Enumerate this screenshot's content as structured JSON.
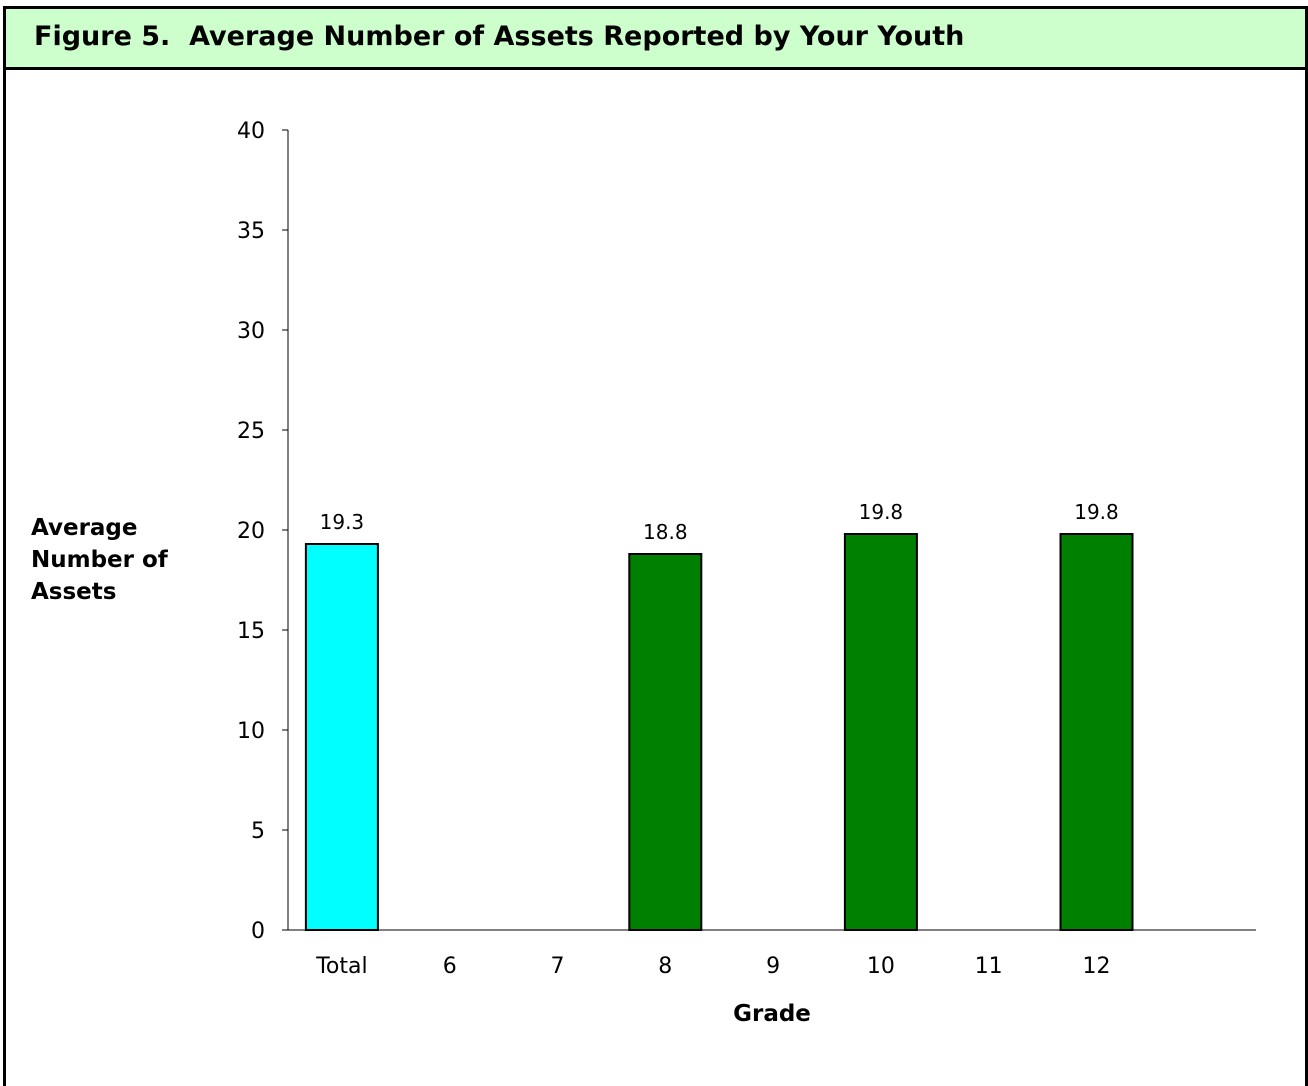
{
  "figure": {
    "title": "Figure 5.  Average Number of Assets Reported by Your Youth",
    "ylabel_lines": [
      "Average",
      "Number of",
      "Assets"
    ]
  },
  "colors": {
    "title_background": "#ccffcc",
    "total_bar": "#00ffff",
    "grade_bar": "#008000",
    "bar_outline": "#000000"
  },
  "chart_data": {
    "type": "bar",
    "title": "Figure 5.  Average Number of Assets Reported by Your Youth",
    "xlabel": "Grade",
    "ylabel": "Average Number of Assets",
    "ylim": [
      0,
      40
    ],
    "yticks": [
      0,
      5,
      10,
      15,
      20,
      25,
      30,
      35,
      40
    ],
    "grid": false,
    "categories": [
      "Total",
      "6",
      "7",
      "8",
      "9",
      "10",
      "11",
      "12"
    ],
    "values": [
      19.3,
      null,
      null,
      18.8,
      null,
      19.8,
      null,
      19.8
    ],
    "data_labels": [
      "19.3",
      "",
      "",
      "18.8",
      "",
      "19.8",
      "",
      "19.8"
    ],
    "bar_colors": [
      "#00ffff",
      null,
      null,
      "#008000",
      null,
      "#008000",
      null,
      "#008000"
    ]
  }
}
